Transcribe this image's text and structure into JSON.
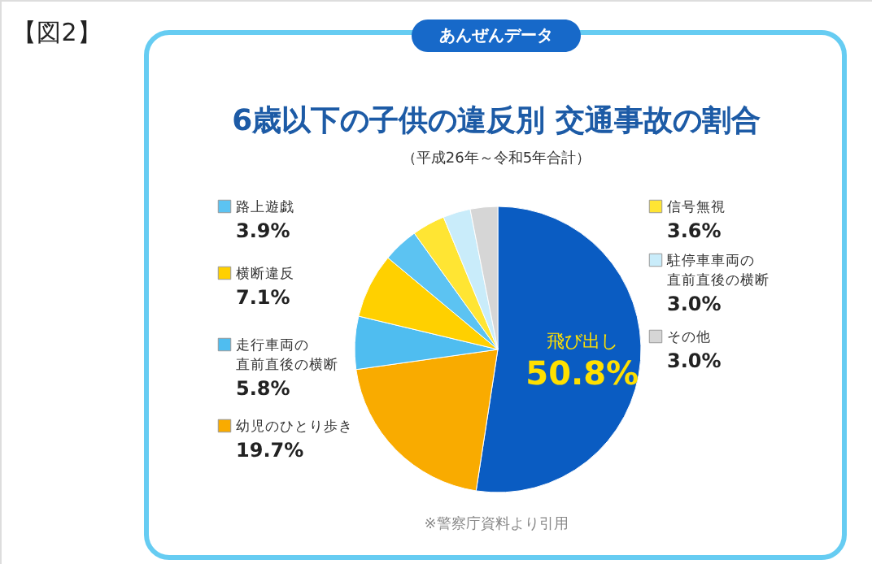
{
  "chart_data": {
    "type": "pie",
    "title": "6歳以下の子供の違反別 交通事故の割合",
    "subtitle": "（平成26年～令和5年合計）",
    "annotations": [
      "【図2】",
      "あんぜんデータ",
      "※警察庁資料より引用"
    ],
    "categories": [
      "飛び出し",
      "幼児のひとり歩き",
      "走行車両の直前直後の横断",
      "横断違反",
      "路上遊戯",
      "信号無視",
      "駐停車車両の直前直後の横断",
      "その他"
    ],
    "values": [
      50.8,
      19.7,
      5.8,
      7.1,
      3.9,
      3.6,
      3.0,
      3.0
    ],
    "value_labels": [
      "50.8%",
      "19.7%",
      "5.8%",
      "7.1%",
      "3.9%",
      "3.6%",
      "3.0%",
      "3.0%"
    ],
    "legend": "left",
    "colors": [
      "#0a5cc2",
      "#f9ab00",
      "#4fbdf0",
      "#ffd000",
      "#5cc3f2",
      "#ffe533",
      "#c9ecfa",
      "#d6d6d6"
    ]
  }
}
